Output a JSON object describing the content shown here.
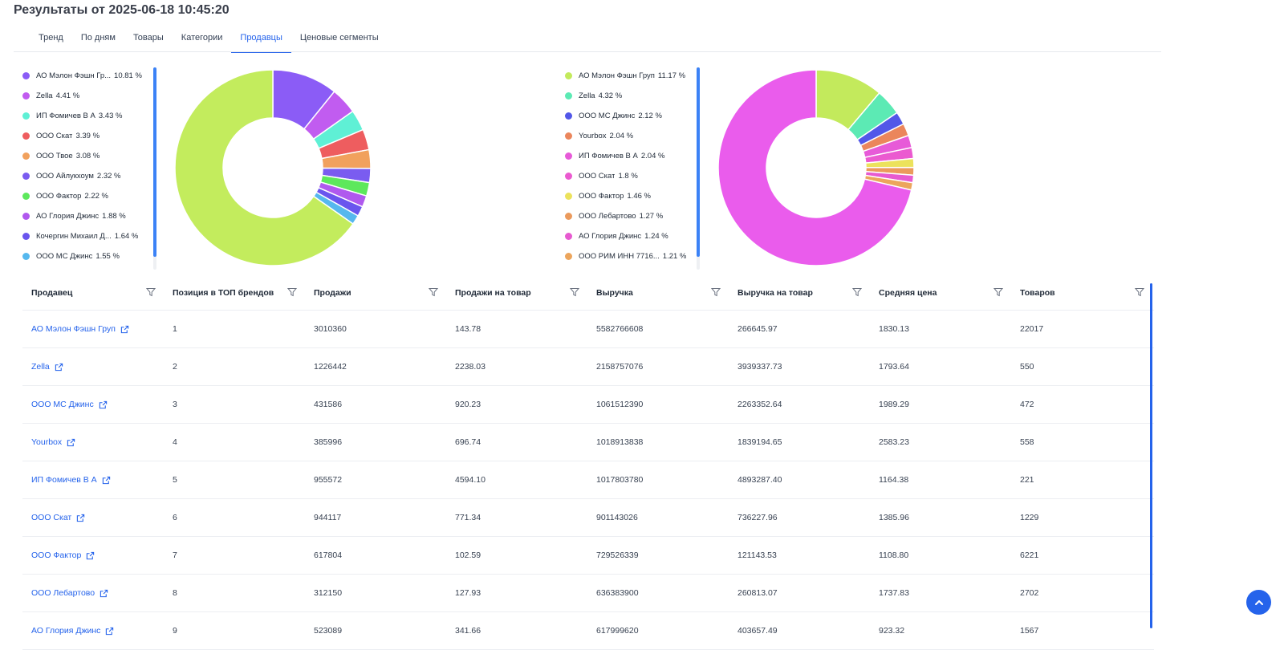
{
  "page": {
    "title": "Результаты от 2025-06-18 10:45:20"
  },
  "tabs": [
    {
      "label": "Тренд"
    },
    {
      "label": "По дням"
    },
    {
      "label": "Товары"
    },
    {
      "label": "Категории"
    },
    {
      "label": "Продавцы",
      "active": true
    },
    {
      "label": "Ценовые сегменты"
    }
  ],
  "legends": {
    "left": [
      {
        "name": "АО Мэлон Фэшн Гр...",
        "value": "10.81 %",
        "color": "#8b5cf6"
      },
      {
        "name": "Zella",
        "value": "4.41 %",
        "color": "#c15cf0"
      },
      {
        "name": "ИП Фомичев В А",
        "value": "3.43 %",
        "color": "#5ff0d5"
      },
      {
        "name": "ООО Скат",
        "value": "3.39 %",
        "color": "#ee5d5f"
      },
      {
        "name": "ООО Твое",
        "value": "3.08 %",
        "color": "#f1a15d"
      },
      {
        "name": "ООО Айлукхоум",
        "value": "2.32 %",
        "color": "#7a5cf0"
      },
      {
        "name": "ООО Фактор",
        "value": "2.22 %",
        "color": "#5de85c"
      },
      {
        "name": "АО Глория Джинс",
        "value": "1.88 %",
        "color": "#b059ee"
      },
      {
        "name": "Кочергин Михаил Д...",
        "value": "1.64 %",
        "color": "#6a55ee"
      },
      {
        "name": "ООО МС Джинс",
        "value": "1.55 %",
        "color": "#56b8ee"
      }
    ],
    "right": [
      {
        "name": "АО Мэлон Фэшн Груп",
        "value": "11.17 %",
        "color": "#c3ea5c"
      },
      {
        "name": "Zella",
        "value": "4.32 %",
        "color": "#5ceab4"
      },
      {
        "name": "ООО МС Джинс",
        "value": "2.12 %",
        "color": "#5257e8"
      },
      {
        "name": "Yourbox",
        "value": "2.04 %",
        "color": "#eb865c"
      },
      {
        "name": "ИП Фомичев В А",
        "value": "2.04 %",
        "color": "#e75ad8"
      },
      {
        "name": "ООО Скат",
        "value": "1.8 %",
        "color": "#eb5ad0"
      },
      {
        "name": "ООО Фактор",
        "value": "1.46 %",
        "color": "#ece25c"
      },
      {
        "name": "ООО Лебартово",
        "value": "1.27 %",
        "color": "#eb9a5c"
      },
      {
        "name": "АО Глория Джинс",
        "value": "1.24 %",
        "color": "#e75ad0"
      },
      {
        "name": "ООО РИМ ИНН 7716...",
        "value": "1.21 %",
        "color": "#eca55c"
      }
    ]
  },
  "chart_data": [
    {
      "type": "pie",
      "donut": true,
      "labels": [
        "АО Мэлон Фэшн Гр...",
        "Zella",
        "ИП Фомичев В А",
        "ООО Скат",
        "ООО Твое",
        "ООО Айлукхоум",
        "ООО Фактор",
        "АО Глория Джинс",
        "Кочергин Михаил Д...",
        "ООО МС Джинс"
      ],
      "values": [
        10.81,
        4.41,
        3.43,
        3.39,
        3.08,
        2.32,
        2.22,
        1.88,
        1.64,
        1.55
      ],
      "colors": [
        "#8b5cf6",
        "#c15cf0",
        "#5ff0d5",
        "#ee5d5f",
        "#f1a15d",
        "#7a5cf0",
        "#5de85c",
        "#b059ee",
        "#6a55ee",
        "#56b8ee"
      ],
      "remainder_color": "#c3ec5d"
    },
    {
      "type": "pie",
      "donut": true,
      "labels": [
        "АО Мэлон Фэшн Груп",
        "Zella",
        "ООО МС Джинс",
        "Yourbox",
        "ИП Фомичев В А",
        "ООО Скат",
        "ООО Фактор",
        "ООО Лебартово",
        "АО Глория Джинс",
        "ООО РИМ ИНН 7716..."
      ],
      "values": [
        11.17,
        4.32,
        2.12,
        2.04,
        2.04,
        1.8,
        1.46,
        1.27,
        1.24,
        1.21
      ],
      "colors": [
        "#c3ea5c",
        "#5ceab4",
        "#5257e8",
        "#eb865c",
        "#e75ad8",
        "#eb5ad0",
        "#ece25c",
        "#eb9a5c",
        "#e75ad0",
        "#eca55c"
      ],
      "remainder_color": "#ea5cec"
    }
  ],
  "table": {
    "columns": [
      "Продавец",
      "Позиция в ТОП брендов",
      "Продажи",
      "Продажи на товар",
      "Выручка",
      "Выручка на товар",
      "Средняя цена",
      "Товаров"
    ],
    "rows": [
      [
        "АО Мэлон Фэшн Груп",
        "1",
        "3010360",
        "143.78",
        "5582766608",
        "266645.97",
        "1830.13",
        "22017"
      ],
      [
        "Zella",
        "2",
        "1226442",
        "2238.03",
        "2158757076",
        "3939337.73",
        "1793.64",
        "550"
      ],
      [
        "ООО МС Джинс",
        "3",
        "431586",
        "920.23",
        "1061512390",
        "2263352.64",
        "1989.29",
        "472"
      ],
      [
        "Yourbox",
        "4",
        "385996",
        "696.74",
        "1018913838",
        "1839194.65",
        "2583.23",
        "558"
      ],
      [
        "ИП Фомичев В А",
        "5",
        "955572",
        "4594.10",
        "1017803780",
        "4893287.40",
        "1164.38",
        "221"
      ],
      [
        "ООО Скат",
        "6",
        "944117",
        "771.34",
        "901143026",
        "736227.96",
        "1385.96",
        "1229"
      ],
      [
        "ООО Фактор",
        "7",
        "617804",
        "102.59",
        "729526339",
        "121143.53",
        "1108.80",
        "6221"
      ],
      [
        "ООО Лебартово",
        "8",
        "312150",
        "127.93",
        "636383900",
        "260813.07",
        "1737.83",
        "2702"
      ],
      [
        "АО Глория Джинс",
        "9",
        "523089",
        "341.66",
        "617999620",
        "403657.49",
        "923.32",
        "1567"
      ]
    ]
  },
  "icons": {
    "filter": "filter-icon",
    "external": "external-link-icon",
    "scroll_top": "arrow-up-icon"
  },
  "colors": {
    "accent": "#2563eb"
  }
}
